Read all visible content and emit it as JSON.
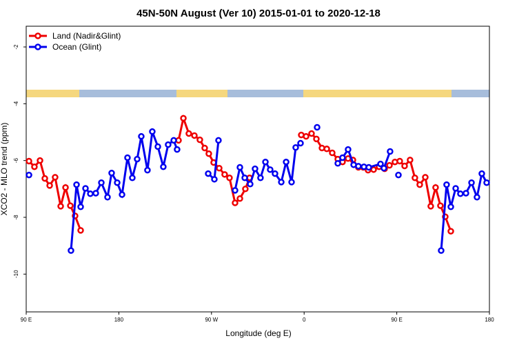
{
  "chart_data": {
    "type": "line",
    "title": "45N-50N August (Ver 10)   2015-01-01 to 2020-12-18",
    "x_label": "Longitude (deg E)",
    "y_label": "XCO2 - MLO trend (ppm)",
    "xlim": [
      90,
      540
    ],
    "ylim": [
      -11.33,
      -1.27
    ],
    "xticks": [
      {
        "value": 90,
        "label": "90 E"
      },
      {
        "value": 180,
        "label": "180"
      },
      {
        "value": 270,
        "label": "90 W"
      },
      {
        "value": 360,
        "label": "0"
      },
      {
        "value": 450,
        "label": "90 E"
      },
      {
        "value": 540,
        "label": "180"
      }
    ],
    "yticks": [
      -2,
      -4,
      -6,
      -8,
      -10
    ],
    "legend": "top-left",
    "series": [
      {
        "name": "Land (Nadir&Glint)",
        "color": "#ee0000",
        "x": [
          92.7,
          98.0,
          103.4,
          108.1,
          112.8,
          118.1,
          123.5,
          128.2,
          132.9,
          137.5,
          142.9,
          null,
          238.0,
          242.7,
          248.0,
          253.4,
          258.7,
          263.4,
          267.4,
          272.1,
          277.5,
          282.8,
          287.5,
          292.9,
          297.6,
          302.9,
          307.0,
          null,
          357.2,
          361.9,
          367.2,
          371.9,
          377.3,
          382.0,
          387.3,
          392.7,
          397.3,
          402.7,
          407.4,
          412.7,
          417.4,
          422.1,
          427.5,
          432.8,
          438.2,
          442.9,
          448.2,
          452.9,
          457.6,
          462.9,
          467.6,
          472.3,
          477.7,
          483.0,
          487.7,
          492.4,
          497.1,
          502.5
        ],
        "values": [
          -6.02,
          -6.22,
          -6.0,
          -6.63,
          -6.88,
          -6.59,
          -7.61,
          -6.95,
          -7.59,
          -7.95,
          -8.46,
          null,
          -5.29,
          -4.51,
          -5.05,
          -5.12,
          -5.27,
          -5.56,
          -5.76,
          -6.07,
          -6.27,
          -6.49,
          -6.61,
          -7.49,
          -7.34,
          -7.0,
          -6.61,
          null,
          -5.1,
          -5.15,
          -5.05,
          -5.24,
          -5.56,
          -5.59,
          -5.73,
          -5.95,
          -6.05,
          -5.93,
          -5.98,
          -6.24,
          -6.24,
          -6.34,
          -6.32,
          -6.22,
          -6.29,
          -6.17,
          -6.05,
          -6.02,
          -6.19,
          -5.98,
          -6.61,
          -6.85,
          -6.59,
          -7.61,
          -6.95,
          -7.59,
          -7.98,
          -8.49
        ]
      },
      {
        "name": "Ocean (Glint)",
        "color": "#0000ee",
        "x": [
          92.7,
          null,
          133.5,
          138.9,
          142.9,
          147.6,
          152.3,
          157.6,
          163.0,
          169.0,
          173.0,
          178.4,
          183.1,
          188.4,
          193.1,
          197.8,
          201.8,
          207.8,
          212.5,
          217.9,
          223.2,
          227.9,
          233.3,
          236.6,
          null,
          266.8,
          272.8,
          276.8,
          null,
          292.9,
          297.6,
          302.3,
          307.6,
          312.3,
          317.6,
          322.4,
          327.0,
          331.7,
          337.8,
          342.5,
          347.8,
          351.8,
          356.5,
          null,
          372.6,
          null,
          392.7,
          397.3,
          402.7,
          408.1,
          412.7,
          418.1,
          422.8,
          434.2,
          437.5,
          443.5,
          null,
          451.6,
          null,
          493.1,
          498.4,
          502.5,
          507.2,
          511.8,
          517.2,
          522.6,
          527.9,
          532.6,
          537.3
        ],
        "values": [
          -6.51,
          null,
          -9.17,
          -6.85,
          -7.63,
          -6.98,
          -7.17,
          -7.15,
          -6.78,
          -7.29,
          -6.44,
          -6.78,
          -7.2,
          -5.9,
          -6.61,
          -5.95,
          -5.15,
          -6.34,
          -4.98,
          -5.51,
          -6.22,
          -5.44,
          -5.29,
          -5.61,
          null,
          -6.46,
          -6.66,
          -5.29,
          null,
          -7.05,
          -6.24,
          -6.61,
          -6.83,
          -6.29,
          -6.61,
          -6.05,
          -6.32,
          -6.46,
          -6.76,
          -6.05,
          -6.76,
          -5.54,
          -5.39,
          null,
          -4.83,
          null,
          -6.1,
          -5.9,
          -5.61,
          -6.15,
          -6.2,
          -6.22,
          -6.24,
          -6.12,
          -6.27,
          -5.68,
          null,
          -6.51,
          null,
          -9.17,
          -6.85,
          -7.63,
          -6.98,
          -7.17,
          -7.15,
          -6.78,
          -7.29,
          -6.46,
          -6.78
        ]
      }
    ]
  }
}
